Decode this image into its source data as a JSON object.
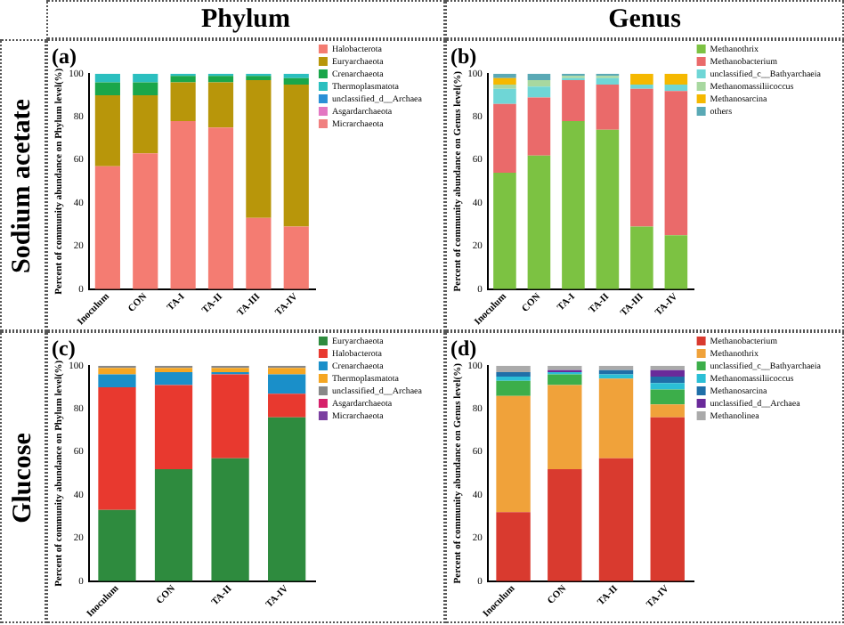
{
  "chart_data": [
    {
      "type": "bar",
      "title": "(a)",
      "annotations": [
        "Phylum",
        "Sodium acetate"
      ],
      "ylabel": "Percent of community abundance on Phylum level(%)",
      "categories": [
        "Inoculum",
        "CON",
        "TA-I",
        "TA-II",
        "TA-III",
        "TA-IV"
      ],
      "stacked": true,
      "ylim": [
        0,
        100
      ],
      "yticks": [
        0,
        20,
        40,
        60,
        80,
        100
      ],
      "grid": false,
      "legend": "right",
      "series": [
        {
          "name": "Halobacterota",
          "color": "#f47c72",
          "values": [
            57,
            63,
            78,
            75,
            33,
            29
          ]
        },
        {
          "name": "Euryarchaeota",
          "color": "#b8960a",
          "values": [
            33,
            27,
            18,
            21,
            64,
            66
          ]
        },
        {
          "name": "Crenarchaeota",
          "color": "#1aa64a",
          "values": [
            6,
            6,
            3,
            3,
            2,
            3
          ]
        },
        {
          "name": "Thermoplasmatota",
          "color": "#2bbfbf",
          "values": [
            4,
            4,
            1,
            1,
            1,
            2
          ]
        },
        {
          "name": "unclassified_d__Archaea",
          "color": "#2a8fd6",
          "values": [
            0,
            0,
            0,
            0,
            0,
            0
          ]
        },
        {
          "name": "Asgardarchaeota",
          "color": "#e377c2",
          "values": [
            0,
            0,
            0,
            0,
            0,
            0
          ]
        },
        {
          "name": "Micrarchaeota",
          "color": "#f08080",
          "values": [
            0,
            0,
            0,
            0,
            0,
            0
          ]
        }
      ]
    },
    {
      "type": "bar",
      "title": "(b)",
      "annotations": [
        "Genus"
      ],
      "ylabel": "Percent of community abundance on Genus level(%)",
      "categories": [
        "Inoculum",
        "CON",
        "TA-I",
        "TA-II",
        "TA-III",
        "TA-IV"
      ],
      "stacked": true,
      "ylim": [
        0,
        100
      ],
      "yticks": [
        0,
        20,
        40,
        60,
        80,
        100
      ],
      "grid": false,
      "legend": "right",
      "series": [
        {
          "name": "Methanothrix",
          "color": "#7cc242",
          "values": [
            54,
            62,
            78,
            74,
            29,
            25
          ]
        },
        {
          "name": "Methanobacterium",
          "color": "#ea6a6a",
          "values": [
            32,
            27,
            19,
            21,
            64,
            67
          ]
        },
        {
          "name": "unclassified_c__Bathyarchaeia",
          "color": "#6fd6d6",
          "values": [
            7,
            5,
            1,
            3,
            2,
            3
          ]
        },
        {
          "name": "Methanomassiliicoccus",
          "color": "#a8d8a0",
          "values": [
            2,
            3,
            1,
            1,
            0,
            0
          ]
        },
        {
          "name": "Methanosarcina",
          "color": "#f5b800",
          "values": [
            3,
            0,
            0,
            0,
            5,
            5
          ]
        },
        {
          "name": "others",
          "color": "#5aa9b5",
          "values": [
            2,
            3,
            1,
            1,
            0,
            0
          ]
        }
      ]
    },
    {
      "type": "bar",
      "title": "(c)",
      "annotations": [
        "Glucose"
      ],
      "ylabel": "Percent of community abundance on Phylum level(%)",
      "categories": [
        "Inoculum",
        "CON",
        "TA-II",
        "TA-IV"
      ],
      "stacked": true,
      "ylim": [
        0,
        100
      ],
      "yticks": [
        0,
        20,
        40,
        60,
        80,
        100
      ],
      "grid": false,
      "legend": "right",
      "series": [
        {
          "name": "Euryarchaeota",
          "color": "#2e8b3e",
          "values": [
            33,
            52,
            57,
            76
          ]
        },
        {
          "name": "Halobacterota",
          "color": "#e8392f",
          "values": [
            57,
            39,
            39,
            11
          ]
        },
        {
          "name": "Crenarchaeota",
          "color": "#1a8fc9",
          "values": [
            6,
            6,
            1,
            9
          ]
        },
        {
          "name": "Thermoplasmatota",
          "color": "#f5a623",
          "values": [
            3,
            2,
            2,
            3
          ]
        },
        {
          "name": "unclassified_d__Archaea",
          "color": "#888888",
          "values": [
            1,
            1,
            1,
            1
          ]
        },
        {
          "name": "Asgardarchaeota",
          "color": "#d6206a",
          "values": [
            0,
            0,
            0,
            0
          ]
        },
        {
          "name": "Micrarchaeota",
          "color": "#7b3fa0",
          "values": [
            0,
            0,
            0,
            0
          ]
        }
      ]
    },
    {
      "type": "bar",
      "title": "(d)",
      "ylabel": "Percent of community abundance on Genus level(%)",
      "categories": [
        "Inoculum",
        "CON",
        "TA-II",
        "TA-IV"
      ],
      "stacked": true,
      "ylim": [
        0,
        100
      ],
      "yticks": [
        0,
        20,
        40,
        60,
        80,
        100
      ],
      "grid": false,
      "legend": "right",
      "series": [
        {
          "name": "Methanobacterium",
          "color": "#d93a2f",
          "values": [
            32,
            52,
            57,
            76
          ]
        },
        {
          "name": "Methanothrix",
          "color": "#f0a23a",
          "values": [
            54,
            39,
            37,
            6
          ]
        },
        {
          "name": "unclassified_c__Bathyarchaeia",
          "color": "#3cae4a",
          "values": [
            7,
            5,
            0,
            7
          ]
        },
        {
          "name": "Methanomassiliicoccus",
          "color": "#2bbfd6",
          "values": [
            2,
            1,
            2,
            3
          ]
        },
        {
          "name": "Methanosarcina",
          "color": "#1f6fa8",
          "values": [
            2,
            0,
            2,
            3
          ]
        },
        {
          "name": "unclassified_d__Archaea",
          "color": "#6a2a9a",
          "values": [
            0,
            1,
            0,
            3
          ]
        },
        {
          "name": "Methanolinea",
          "color": "#aaaaaa",
          "values": [
            3,
            2,
            2,
            2
          ]
        }
      ]
    }
  ]
}
